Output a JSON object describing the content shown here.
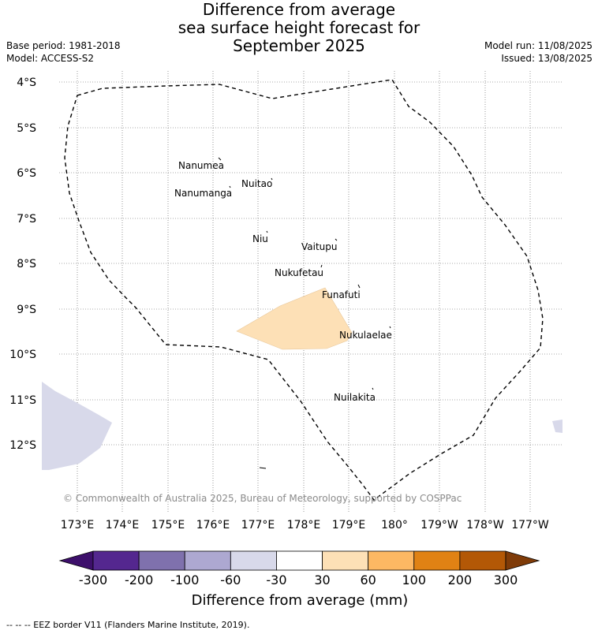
{
  "title": {
    "line1": "Difference from average",
    "line2": "sea surface height forecast for",
    "line3": "September 2025"
  },
  "meta": {
    "base_period": "Base period: 1981-2018",
    "model": "Model: ACCESS-S2",
    "model_run": "Model run: 11/08/2025",
    "issued": "Issued: 13/08/2025"
  },
  "map": {
    "lat_labels": [
      "4°S",
      "5°S",
      "6°S",
      "7°S",
      "8°S",
      "9°S",
      "10°S",
      "11°S",
      "12°S"
    ],
    "lon_labels": [
      "173°E",
      "174°E",
      "175°E",
      "176°E",
      "177°E",
      "178°E",
      "179°E",
      "180°",
      "179°W",
      "178°W",
      "177°W"
    ],
    "islands": [
      "Nanumea",
      "Nuitao",
      "Nanumanga",
      "Niu",
      "Vaitupu",
      "Nukufetau",
      "Funafuti",
      "Nukulaelae",
      "Nuilakita"
    ],
    "copyright": "© Commonwealth of Australia 2025, Bureau of Meteorology, supported by COSPPac",
    "anomaly_regions": [
      {
        "category": "30 to 60",
        "color": "#fde0b6"
      },
      {
        "category": "-60 to -30",
        "color": "#d8d9ea"
      }
    ]
  },
  "colorbar": {
    "title": "Difference from average (mm)",
    "ticks": [
      "-300",
      "-200",
      "-100",
      "-60",
      "-30",
      "30",
      "60",
      "100",
      "200",
      "300"
    ],
    "colors": {
      "below": "#3d0f6b",
      "bins": [
        "#54278f",
        "#7f71ad",
        "#ada8d1",
        "#d8d9ea",
        "#ffffff",
        "#fde0b6",
        "#fdb863",
        "#e08214",
        "#b35806"
      ],
      "above": "#7f3b08"
    }
  },
  "legend_note": "--  --  -- EEZ border V11 (Flanders Marine Institute, 2019)."
}
